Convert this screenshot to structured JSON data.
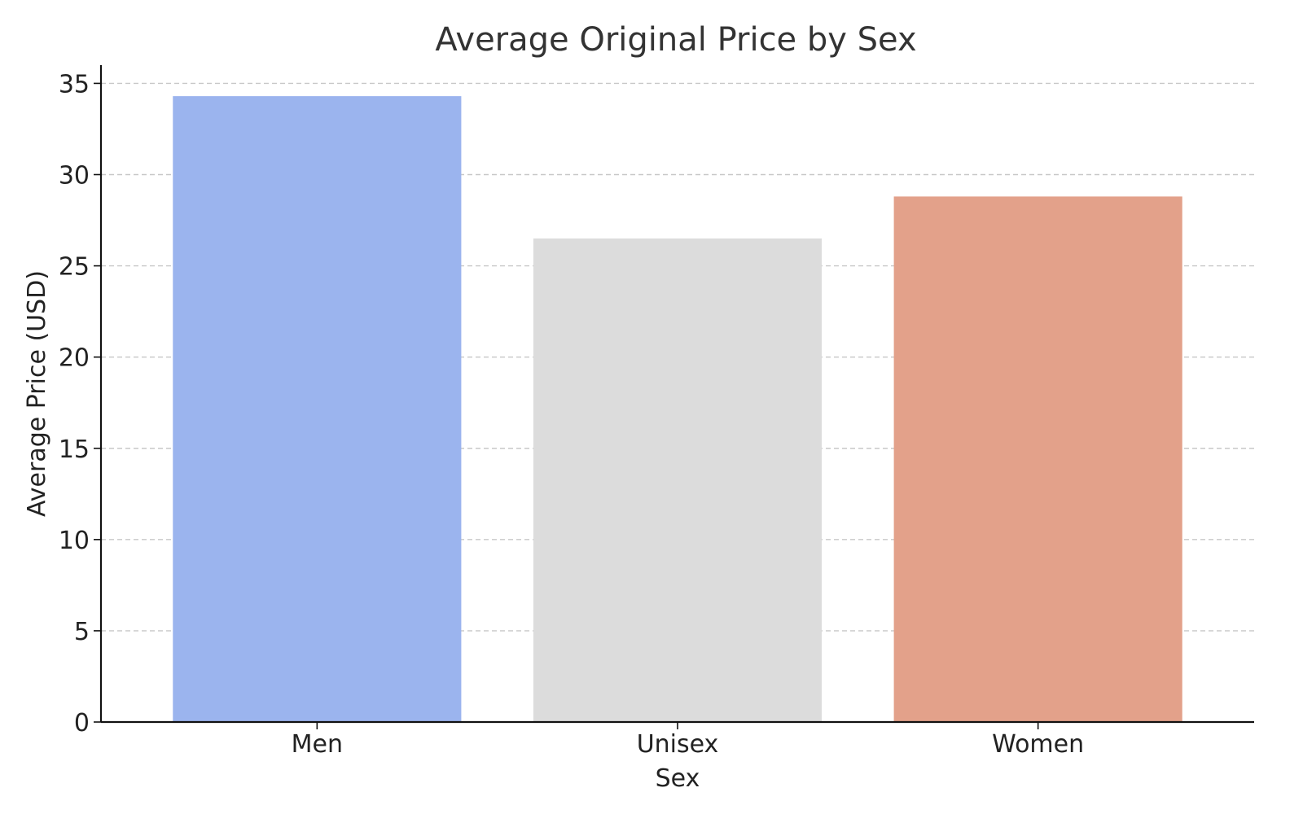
{
  "chart_data": {
    "type": "bar",
    "title": "Average Original Price by Sex",
    "xlabel": "Sex",
    "ylabel": "Average Price (USD)",
    "categories": [
      "Men",
      "Unisex",
      "Women"
    ],
    "values": [
      34.3,
      26.5,
      28.8
    ],
    "colors": [
      "#9bb4ee",
      "#dcdcdc",
      "#e3a18a"
    ],
    "ylim": [
      0,
      36
    ],
    "yticks": [
      0,
      5,
      10,
      15,
      20,
      25,
      30,
      35
    ],
    "grid": true,
    "grid_axis": "y",
    "legend": "none"
  }
}
